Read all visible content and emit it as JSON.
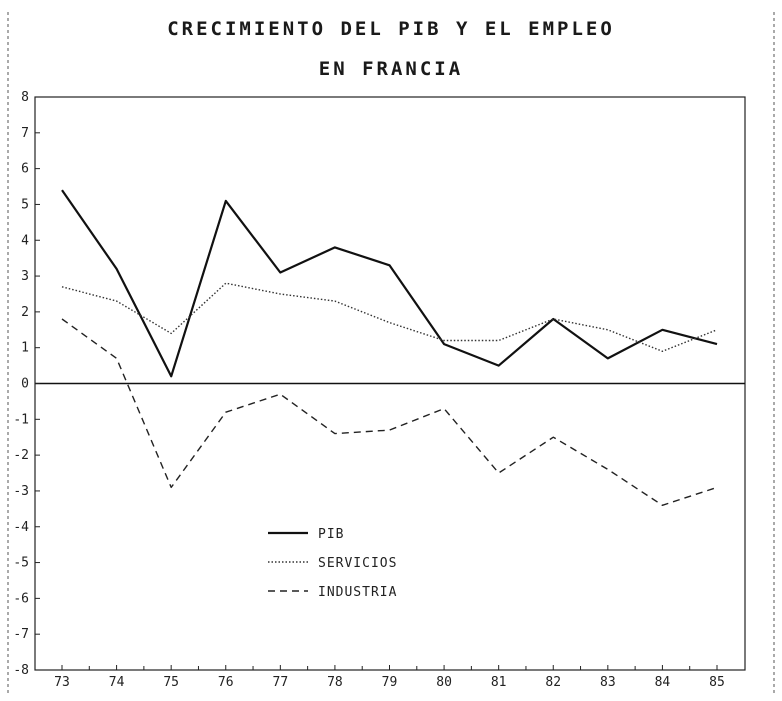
{
  "chart_data": {
    "type": "line",
    "title_line1": "CRECIMIENTO DEL PIB Y EL EMPLEO",
    "title_line2": "EN FRANCIA",
    "categories": [
      "73",
      "74",
      "75",
      "76",
      "77",
      "78",
      "79",
      "80",
      "81",
      "82",
      "83",
      "84",
      "85"
    ],
    "ylim": [
      -8,
      8
    ],
    "yticks": [
      8,
      7,
      6,
      5,
      4,
      3,
      2,
      1,
      0,
      -1,
      -2,
      -3,
      -4,
      -5,
      -6,
      -7,
      -8
    ],
    "series": [
      {
        "name": "PIB",
        "style": "solid",
        "values": [
          5.4,
          3.2,
          0.2,
          5.1,
          3.1,
          3.8,
          3.3,
          1.1,
          0.5,
          1.8,
          0.7,
          1.5,
          1.1
        ]
      },
      {
        "name": "SERVICIOS",
        "style": "dotted",
        "values": [
          2.7,
          2.3,
          1.4,
          2.8,
          2.5,
          2.3,
          1.7,
          1.2,
          1.2,
          1.8,
          1.5,
          0.9,
          1.5
        ]
      },
      {
        "name": "INDUSTRIA",
        "style": "dashed",
        "values": [
          1.8,
          0.7,
          -2.9,
          -0.8,
          -0.3,
          -1.4,
          -1.3,
          -0.7,
          -2.5,
          -1.5,
          -2.4,
          -3.4,
          -2.9
        ]
      }
    ],
    "legend_position": "lower-left",
    "grid": false
  }
}
